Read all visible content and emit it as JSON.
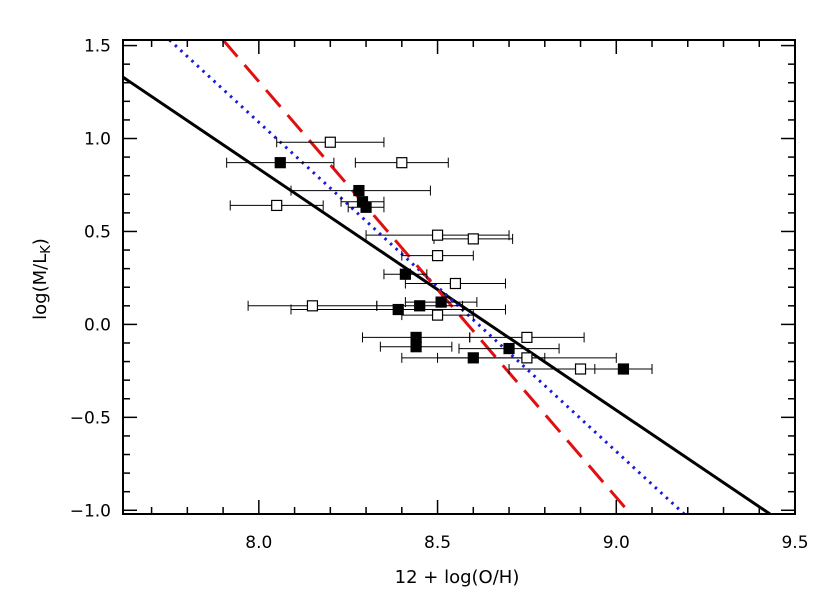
{
  "chart_data": {
    "type": "scatter",
    "title": "",
    "xlabel": "12 + log(O/H)",
    "ylabel_main": "log(M/L",
    "ylabel_sub": "K",
    "ylabel_close": ")",
    "xlim": [
      7.62,
      9.5
    ],
    "ylim": [
      -1.02,
      1.53
    ],
    "xticks": [
      8.0,
      8.5,
      9.0,
      9.5
    ],
    "xtick_labels": [
      "8.0",
      "8.5",
      "9.0",
      "9.5"
    ],
    "yticks": [
      -1.0,
      -0.5,
      0.0,
      0.5,
      1.0,
      1.5
    ],
    "ytick_labels": [
      "−1.0",
      "−0.5",
      "0.0",
      "0.5",
      "1.0",
      "1.5"
    ],
    "grid": false,
    "series": [
      {
        "marker": "filled-square",
        "color": "#000000",
        "points": [
          {
            "x": 8.06,
            "y": 0.87,
            "xerr": [
              0.15,
              0.15
            ]
          },
          {
            "x": 8.28,
            "y": 0.72,
            "xerr": [
              0.19,
              0.2
            ]
          },
          {
            "x": 8.29,
            "y": 0.66,
            "xerr": [
              0.06,
              0.06
            ]
          },
          {
            "x": 8.3,
            "y": 0.63,
            "xerr": [
              0.05,
              0.05
            ]
          },
          {
            "x": 8.41,
            "y": 0.27,
            "xerr": [
              0.06,
              0.06
            ]
          },
          {
            "x": 8.51,
            "y": 0.12,
            "xerr": [
              0.1,
              0.1
            ]
          },
          {
            "x": 8.45,
            "y": 0.1,
            "xerr": [
              0.12,
              0.12
            ]
          },
          {
            "x": 8.39,
            "y": 0.08,
            "xerr": [
              0.3,
              0.3
            ]
          },
          {
            "x": 8.44,
            "y": -0.07,
            "xerr": [
              0.15,
              0.15
            ]
          },
          {
            "x": 8.44,
            "y": -0.12,
            "xerr": [
              0.1,
              0.1
            ]
          },
          {
            "x": 8.7,
            "y": -0.13,
            "xerr": [
              0.14,
              0.14
            ]
          },
          {
            "x": 8.6,
            "y": -0.18,
            "xerr": [
              0.2,
              0.2
            ]
          },
          {
            "x": 9.02,
            "y": -0.24,
            "xerr": [
              0.08,
              0.08
            ]
          }
        ]
      },
      {
        "marker": "open-square",
        "color": "#000000",
        "points": [
          {
            "x": 8.2,
            "y": 0.98,
            "xerr": [
              0.15,
              0.15
            ]
          },
          {
            "x": 8.4,
            "y": 0.87,
            "xerr": [
              0.13,
              0.13
            ]
          },
          {
            "x": 8.05,
            "y": 0.64,
            "xerr": [
              0.13,
              0.13
            ]
          },
          {
            "x": 8.5,
            "y": 0.48,
            "xerr": [
              0.2,
              0.2
            ]
          },
          {
            "x": 8.6,
            "y": 0.46,
            "xerr": [
              0.11,
              0.11
            ]
          },
          {
            "x": 8.5,
            "y": 0.37,
            "xerr": [
              0.1,
              0.1
            ]
          },
          {
            "x": 8.55,
            "y": 0.22,
            "xerr": [
              0.14,
              0.14
            ]
          },
          {
            "x": 8.15,
            "y": 0.1,
            "xerr": [
              0.18,
              0.18
            ]
          },
          {
            "x": 8.5,
            "y": 0.05,
            "xerr": [
              0.1,
              0.1
            ]
          },
          {
            "x": 8.75,
            "y": -0.07,
            "xerr": [
              0.16,
              0.16
            ]
          },
          {
            "x": 8.75,
            "y": -0.18,
            "xerr": [
              0.25,
              0.25
            ]
          },
          {
            "x": 8.9,
            "y": -0.24,
            "xerr": [
              0.2,
              0.2
            ]
          }
        ]
      }
    ],
    "lines": [
      {
        "style": "solid",
        "color": "#000000",
        "x": [
          7.62,
          9.43
        ],
        "y": [
          1.33,
          -1.02
        ]
      },
      {
        "style": "dotted",
        "color": "#1a1adc",
        "x": [
          7.75,
          9.19
        ],
        "y": [
          1.53,
          -1.02
        ]
      },
      {
        "style": "dashed",
        "color": "#e01010",
        "x": [
          7.9,
          9.04
        ],
        "y": [
          1.53,
          -1.02
        ]
      }
    ]
  }
}
